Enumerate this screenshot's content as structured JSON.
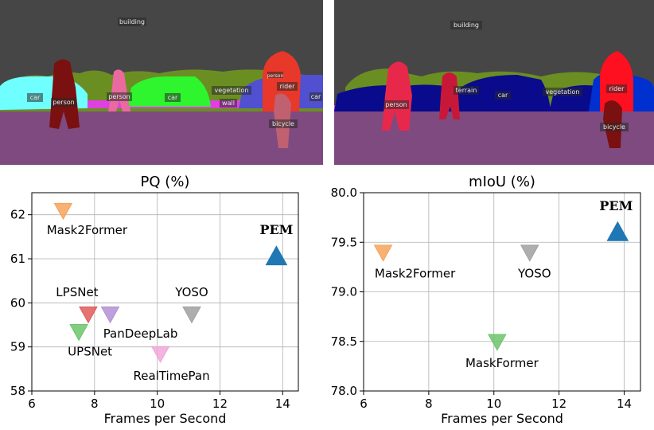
{
  "segmentation": {
    "left": {
      "labels": [
        "building",
        "car",
        "person",
        "person",
        "car",
        "vegetation",
        "wall",
        "person",
        "rider",
        "car",
        "bicycle"
      ]
    },
    "right": {
      "labels": [
        "building",
        "person",
        "terrain",
        "car",
        "vegetation",
        "rider",
        "bicycle"
      ]
    }
  },
  "chart_data": [
    {
      "type": "scatter",
      "title": "PQ (%)",
      "xlabel": "Frames per Second",
      "ylabel": "",
      "xlim": [
        6,
        14.5
      ],
      "ylim": [
        58,
        62.5
      ],
      "xticks": [
        "6",
        "8",
        "10",
        "12",
        "14"
      ],
      "yticks": [
        "58",
        "59",
        "60",
        "61",
        "62"
      ],
      "grid": true,
      "points": [
        {
          "label": "Mask2Former",
          "x": 7.0,
          "y": 62.1,
          "color": "#f5a35a",
          "shape": "triangle-down",
          "label_bold": false
        },
        {
          "label": "PEM",
          "x": 13.8,
          "y": 61.05,
          "color": "#1f77b4",
          "shape": "triangle-up",
          "label_bold": true
        },
        {
          "label": "LPSNet",
          "x": 7.8,
          "y": 59.75,
          "color": "#e05a5a",
          "shape": "triangle-down",
          "label_bold": false
        },
        {
          "label": "PanDeepLab",
          "x": 8.5,
          "y": 59.75,
          "color": "#b38fd6",
          "shape": "triangle-down",
          "label_bold": false
        },
        {
          "label": "YOSO",
          "x": 11.1,
          "y": 59.75,
          "color": "#a0a0a0",
          "shape": "triangle-down",
          "label_bold": false
        },
        {
          "label": "UPSNet",
          "x": 7.5,
          "y": 59.35,
          "color": "#6cc46c",
          "shape": "triangle-down",
          "label_bold": false
        },
        {
          "label": "RealTimePan",
          "x": 10.1,
          "y": 58.85,
          "color": "#f0a8d8",
          "shape": "triangle-down",
          "label_bold": false
        }
      ]
    },
    {
      "type": "scatter",
      "title": "mIoU (%)",
      "xlabel": "Frames per Second",
      "ylabel": "",
      "xlim": [
        6,
        14.5
      ],
      "ylim": [
        78.0,
        80.0
      ],
      "xticks": [
        "6",
        "8",
        "10",
        "12",
        "14"
      ],
      "yticks": [
        "78.0",
        "78.5",
        "79.0",
        "79.5",
        "80.0"
      ],
      "grid": true,
      "points": [
        {
          "label": "Mask2Former",
          "x": 6.6,
          "y": 79.4,
          "color": "#f5a35a",
          "shape": "triangle-down",
          "label_bold": false
        },
        {
          "label": "YOSO",
          "x": 11.1,
          "y": 79.4,
          "color": "#a0a0a0",
          "shape": "triangle-down",
          "label_bold": false
        },
        {
          "label": "PEM",
          "x": 13.8,
          "y": 79.6,
          "color": "#1f77b4",
          "shape": "triangle-up",
          "label_bold": true
        },
        {
          "label": "MaskFormer",
          "x": 10.1,
          "y": 78.5,
          "color": "#6cc46c",
          "shape": "triangle-down",
          "label_bold": false
        }
      ]
    }
  ]
}
